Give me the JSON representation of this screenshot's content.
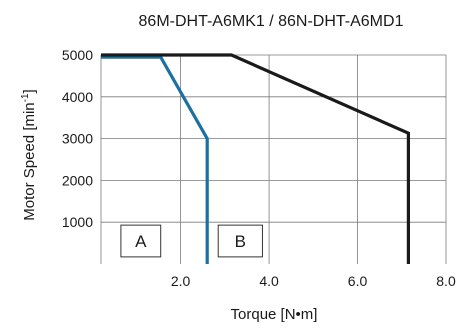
{
  "chart_data": {
    "type": "line",
    "title": "86M-DHT-A6MK1 / 86N-DHT-A6MD1",
    "xlabel": "Torque [N•m]",
    "ylabel_main": "Motor Speed [min",
    "ylabel_sup": "-1",
    "ylabel_end": "]",
    "xlim": [
      0.2,
      8.0
    ],
    "ylim": [
      0,
      5000
    ],
    "x_ticks": [
      2.0,
      4.0,
      6.0,
      8.0
    ],
    "x_tick_labels": [
      "2.0",
      "4.0",
      "6.0",
      "8.0"
    ],
    "y_ticks": [
      1000,
      2000,
      3000,
      4000,
      5000
    ],
    "y_tick_labels": [
      "1000",
      "2000",
      "3000",
      "4000",
      "5000"
    ],
    "grid": true,
    "series": [
      {
        "color": "#1a6fa3",
        "x": [
          0.2,
          1.55,
          2.6,
          2.6
        ],
        "y": [
          4950,
          4950,
          3000,
          0
        ]
      },
      {
        "color": "#1a1a1a",
        "x": [
          0.2,
          3.15,
          7.15,
          7.15
        ],
        "y": [
          5000,
          5000,
          3130,
          0
        ]
      }
    ],
    "regions": [
      {
        "label": "A",
        "x": [
          0.65,
          1.55
        ],
        "y": [
          170,
          930
        ]
      },
      {
        "label": "B",
        "x": [
          2.85,
          3.85
        ],
        "y": [
          170,
          930
        ]
      }
    ]
  }
}
